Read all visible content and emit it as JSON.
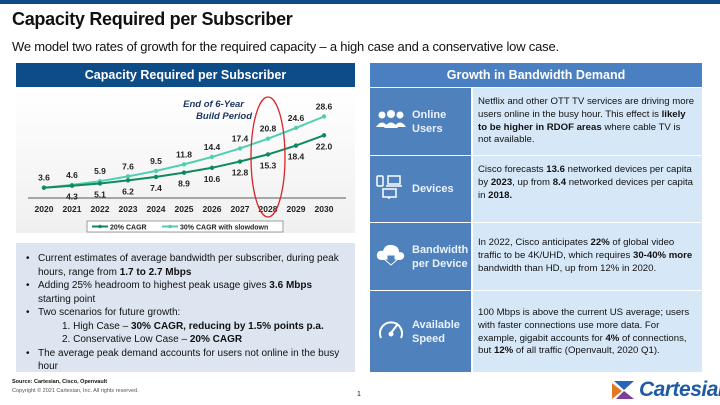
{
  "title": "Capacity Required per Subscriber",
  "subtitle": "We model two rates of growth for the required capacity – a high case and a conservative low case.",
  "left": {
    "header": "Capacity Required per Subscriber",
    "annotation": [
      "End of 6-Year",
      "Build Period"
    ],
    "bullets": [
      [
        "Current estimates of average bandwidth per subscriber, during peak hours, range from ",
        "1.7 to 2.7 Mbps",
        ""
      ],
      [
        "Adding 25% headroom to highest peak usage gives ",
        "3.6 Mbps",
        " starting point"
      ],
      [
        "Two scenarios for future growth:",
        "",
        ""
      ],
      [
        "1.  High Case – ",
        "30% CAGR, reducing by 1.5% points p.a.",
        ""
      ],
      [
        "2.  Conservative Low Case – ",
        "20% CAGR",
        ""
      ],
      [
        "The average peak demand accounts for users not online in the busy hour",
        "",
        ""
      ]
    ]
  },
  "chart_data": {
    "type": "line",
    "categories": [
      "2020",
      "2021",
      "2022",
      "2023",
      "2024",
      "2025",
      "2026",
      "2027",
      "2028",
      "2029",
      "2030"
    ],
    "series": [
      {
        "name": "20% CAGR",
        "color": "#0e8a5f",
        "values": [
          3.6,
          4.3,
          5.1,
          6.2,
          7.4,
          8.9,
          10.6,
          12.8,
          15.3,
          18.4,
          22.0
        ]
      },
      {
        "name": "30% CAGR with slowdown",
        "color": "#4fcfb0",
        "values": [
          3.6,
          4.6,
          5.9,
          7.6,
          9.5,
          11.8,
          14.4,
          17.4,
          20.8,
          24.6,
          28.6
        ]
      }
    ],
    "highlight_category": "2028",
    "highlight_color": "#d9262a",
    "legend": "bottom",
    "grid": false
  },
  "right": {
    "header": "Growth in Bandwidth Demand",
    "rows": [
      {
        "icon": "users-icon",
        "label": [
          "Online",
          "Users"
        ],
        "text": [
          [
            "Netflix and other OTT TV services are driving more users online in the busy hour. This effect is ",
            ""
          ],
          [
            "likely to be higher in RDOF areas",
            "b"
          ],
          [
            " where cable TV is not available.",
            ""
          ]
        ]
      },
      {
        "icon": "devices-icon",
        "label": [
          "Devices"
        ],
        "text": [
          [
            "Cisco forecasts ",
            ""
          ],
          [
            "13.6",
            "b"
          ],
          [
            " networked devices per capita by ",
            ""
          ],
          [
            "2023",
            "b"
          ],
          [
            ", up from ",
            ""
          ],
          [
            "8.4",
            "b"
          ],
          [
            " networked devices per capita in ",
            ""
          ],
          [
            "2018.",
            "b"
          ]
        ]
      },
      {
        "icon": "cloud-download-icon",
        "label": [
          "Bandwidth",
          "per Device"
        ],
        "text": [
          [
            "In 2022, Cisco anticipates ",
            ""
          ],
          [
            "22%",
            "b"
          ],
          [
            " of global video traffic to be 4K/UHD, which requires ",
            ""
          ],
          [
            "30-40% more",
            "b"
          ],
          [
            " bandwidth than HD, up from 12% in 2020.",
            ""
          ]
        ]
      },
      {
        "icon": "speedometer-icon",
        "label": [
          "Available",
          "Speed"
        ],
        "text": [
          [
            "100 Mbps is above the current US average; users with faster connections use more data. For example, gigabit accounts for ",
            ""
          ],
          [
            "4%",
            "b"
          ],
          [
            " of connections, but ",
            ""
          ],
          [
            "12%",
            "b"
          ],
          [
            " of all traffic (Openvault, 2020 Q1).",
            ""
          ]
        ]
      }
    ]
  },
  "footer": {
    "source": "Source: Cartesian, Cisco, Openvault",
    "copyright": "Copyright © 2021 Cartesian, Inc. All rights reserved.",
    "page": "1"
  },
  "logo": {
    "text": "Cartesian"
  }
}
